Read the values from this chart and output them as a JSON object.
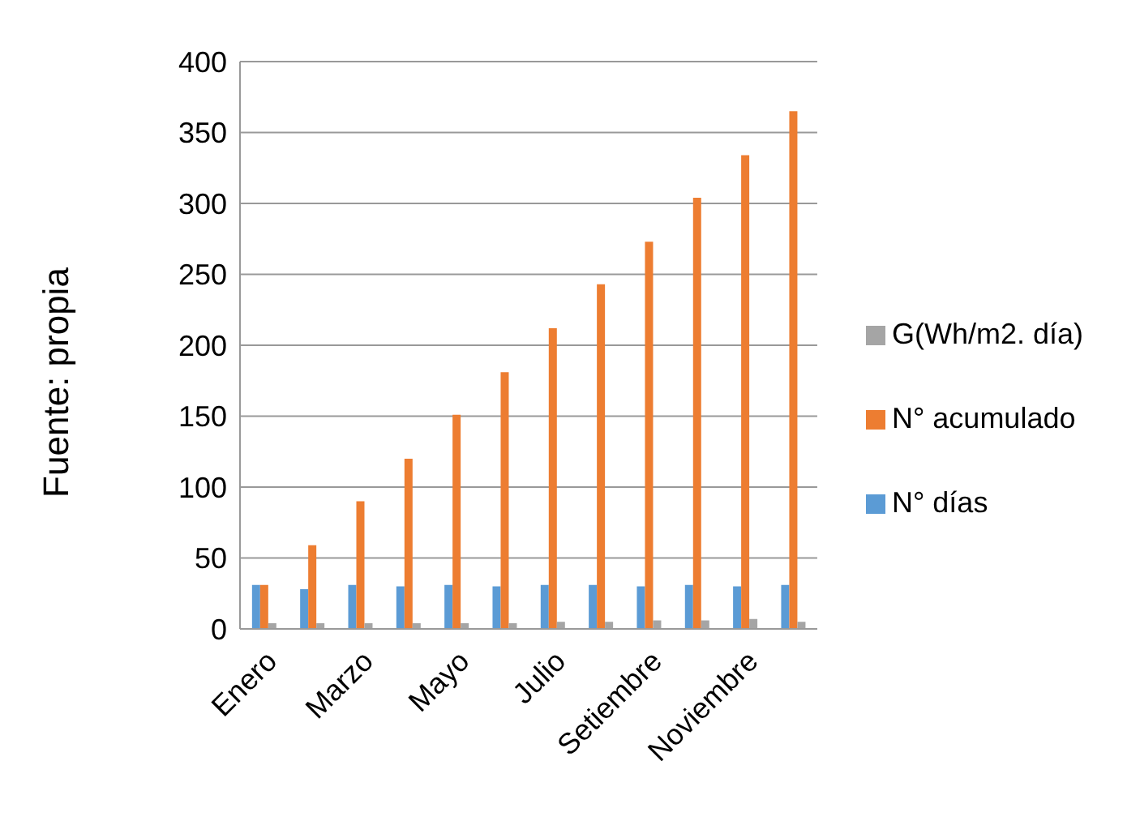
{
  "chart_data": {
    "type": "bar",
    "categories": [
      "Enero",
      null,
      "Marzo",
      null,
      "Mayo",
      null,
      "Julio",
      null,
      "Setiembre",
      null,
      "Noviembre",
      null
    ],
    "series": [
      {
        "name": "N° días",
        "color": "#5b9bd5",
        "values": [
          31,
          28,
          31,
          30,
          31,
          30,
          31,
          31,
          30,
          31,
          30,
          31
        ]
      },
      {
        "name": "N° acumulado",
        "color": "#ed7d31",
        "values": [
          31,
          59,
          90,
          120,
          151,
          181,
          212,
          243,
          273,
          304,
          334,
          365
        ]
      },
      {
        "name": "G(Wh/m2. día)",
        "color": "#a5a5a5",
        "values": [
          4,
          4,
          4,
          4,
          4,
          4,
          5,
          5,
          6,
          6,
          7,
          5
        ]
      }
    ],
    "ylim": [
      0,
      400
    ],
    "yticks": [
      0,
      50,
      100,
      150,
      200,
      250,
      300,
      350,
      400
    ],
    "grid": "y",
    "legend": "right",
    "annotations": [
      "Fuente: propia"
    ]
  }
}
